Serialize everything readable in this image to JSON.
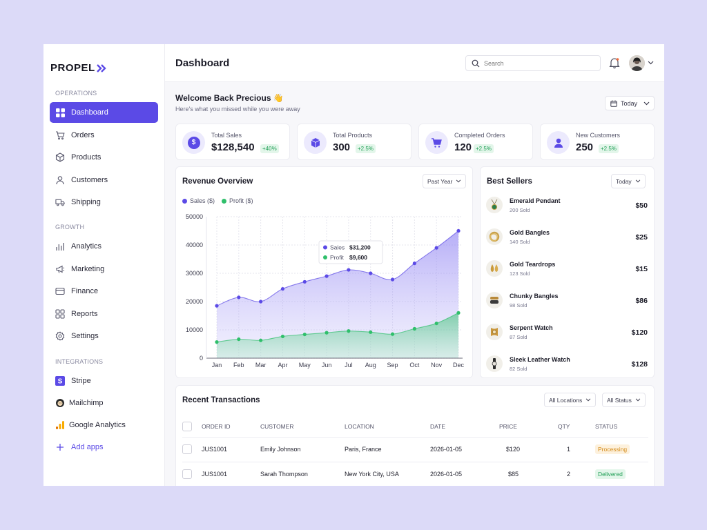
{
  "app": {
    "logo": "PROPEL"
  },
  "sidebar": {
    "sections": {
      "operations": "OPERATIONS",
      "growth": "GROWTH",
      "integrations": "INTEGRATIONS"
    },
    "operations": [
      {
        "label": "Dashboard",
        "icon": "grid-icon",
        "active": true
      },
      {
        "label": "Orders",
        "icon": "cart-icon"
      },
      {
        "label": "Products",
        "icon": "box-icon"
      },
      {
        "label": "Customers",
        "icon": "user-icon"
      },
      {
        "label": "Shipping",
        "icon": "truck-icon"
      }
    ],
    "growth": [
      {
        "label": "Analytics",
        "icon": "bar-chart-icon"
      },
      {
        "label": "Marketing",
        "icon": "megaphone-icon"
      },
      {
        "label": "Finance",
        "icon": "card-icon"
      },
      {
        "label": "Reports",
        "icon": "reports-icon"
      },
      {
        "label": "Settings",
        "icon": "gear-icon"
      }
    ],
    "integrations": [
      {
        "label": "Stripe",
        "icon": "stripe-icon"
      },
      {
        "label": "Mailchimp",
        "icon": "mailchimp-icon"
      },
      {
        "label": "Google Analytics",
        "icon": "google-analytics-icon"
      }
    ],
    "add_apps": "Add apps"
  },
  "header": {
    "title": "Dashboard",
    "search_placeholder": "Search"
  },
  "welcome": {
    "title": "Welcome Back Precious 👋",
    "subtitle": "Here's what you missed while you were away",
    "range": "Today"
  },
  "stats": [
    {
      "label": "Total Sales",
      "value": "$128,540",
      "delta": "+40%",
      "icon": "dollar-icon"
    },
    {
      "label": "Total Products",
      "value": "300",
      "delta": "+2.5%",
      "icon": "cube-icon"
    },
    {
      "label": "Completed Orders",
      "value": "120",
      "delta": "+2.5%",
      "icon": "cart-icon"
    },
    {
      "label": "New Customers",
      "value": "250",
      "delta": "+2.5%",
      "icon": "user-icon"
    }
  ],
  "revenue": {
    "title": "Revenue Overview",
    "range": "Past Year",
    "legend": {
      "sales": "Sales ($)",
      "profit": "Profit ($)"
    },
    "tooltip": {
      "sales_label": "Sales",
      "sales_value": "$31,200",
      "profit_label": "Profit",
      "profit_value": "$9,600"
    }
  },
  "chart_data": {
    "type": "area",
    "categories": [
      "Jan",
      "Feb",
      "Mar",
      "Apr",
      "May",
      "Jun",
      "Jul",
      "Aug",
      "Sep",
      "Oct",
      "Nov",
      "Dec"
    ],
    "series": [
      {
        "name": "Sales ($)",
        "color": "#5b4ae6",
        "values": [
          18500,
          21500,
          20000,
          24500,
          27000,
          29000,
          31200,
          30000,
          27800,
          33500,
          39000,
          45000
        ]
      },
      {
        "name": "Profit ($)",
        "color": "#2fbf6b",
        "values": [
          5700,
          6700,
          6300,
          7700,
          8400,
          9000,
          9600,
          9200,
          8500,
          10400,
          12300,
          16000
        ]
      }
    ],
    "ylim": [
      0,
      50000
    ],
    "yticks": [
      0,
      10000,
      20000,
      30000,
      40000,
      50000
    ],
    "grid": true,
    "legend": "top-left"
  },
  "best_sellers": {
    "title": "Best Sellers",
    "range": "Today",
    "items": [
      {
        "name": "Emerald Pendant",
        "sold": "200 Sold",
        "price": "$50",
        "icon": "pendant-icon"
      },
      {
        "name": "Gold Bangles",
        "sold": "140 Sold",
        "price": "$25",
        "icon": "bangle-icon"
      },
      {
        "name": "Gold Teardrops",
        "sold": "123 Sold",
        "price": "$15",
        "icon": "earring-icon"
      },
      {
        "name": "Chunky Bangles",
        "sold": "98 Sold",
        "price": "$86",
        "icon": "bangle-icon"
      },
      {
        "name": "Serpent Watch",
        "sold": "87 Sold",
        "price": "$120",
        "icon": "watch-icon"
      },
      {
        "name": "Sleek Leather Watch",
        "sold": "82 Sold",
        "price": "$128",
        "icon": "watch-icon"
      }
    ]
  },
  "transactions": {
    "title": "Recent Transactions",
    "filters": {
      "locations": "All Locations",
      "status": "All Status"
    },
    "columns": [
      "ORDER ID",
      "CUSTOMER",
      "LOCATION",
      "DATE",
      "PRICE",
      "QTY",
      "STATUS"
    ],
    "rows": [
      {
        "id": "JUS1001",
        "customer": "Emily Johnson",
        "location": "Paris, France",
        "date": "2026-01-05",
        "price": "$120",
        "qty": "1",
        "status": "Processing"
      },
      {
        "id": "JUS1001",
        "customer": "Sarah Thompson",
        "location": "New York City, USA",
        "date": "2026-01-05",
        "price": "$85",
        "qty": "2",
        "status": "Delivered"
      }
    ]
  }
}
